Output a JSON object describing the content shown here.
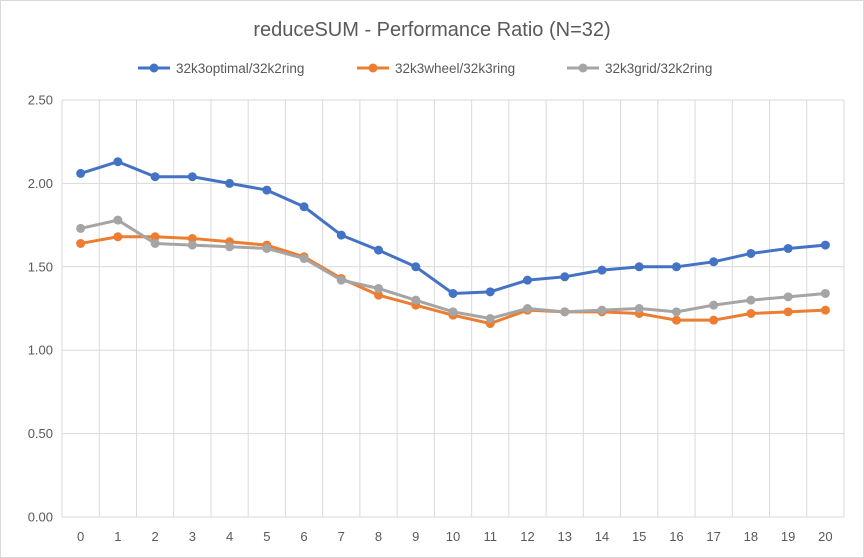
{
  "chart_data": {
    "type": "line",
    "title": "reduceSUM - Performance Ratio (N=32)",
    "xlabel": "",
    "ylabel": "",
    "x": [
      0,
      1,
      2,
      3,
      4,
      5,
      6,
      7,
      8,
      9,
      10,
      11,
      12,
      13,
      14,
      15,
      16,
      17,
      18,
      19,
      20
    ],
    "x_tick_labels": [
      "0",
      "1",
      "2",
      "3",
      "4",
      "5",
      "6",
      "7",
      "8",
      "9",
      "10",
      "11",
      "12",
      "13",
      "14",
      "15",
      "16",
      "17",
      "18",
      "19",
      "20"
    ],
    "ylim": [
      0,
      2.5
    ],
    "y_ticks": [
      0,
      0.5,
      1.0,
      1.5,
      2.0,
      2.5
    ],
    "y_tick_labels": [
      "0.00",
      "0.50",
      "1.00",
      "1.50",
      "2.00",
      "2.50"
    ],
    "grid": "vertical and horizontal",
    "legend_position": "top",
    "series": [
      {
        "name": "32k3optimal/32k2ring",
        "color": "#4472C4",
        "values": [
          2.06,
          2.13,
          2.04,
          2.04,
          2.0,
          1.96,
          1.86,
          1.69,
          1.6,
          1.5,
          1.34,
          1.35,
          1.42,
          1.44,
          1.48,
          1.5,
          1.5,
          1.53,
          1.58,
          1.61,
          1.63
        ]
      },
      {
        "name": "32k3wheel/32k3ring",
        "color": "#ED7D31",
        "values": [
          1.64,
          1.68,
          1.68,
          1.67,
          1.65,
          1.63,
          1.56,
          1.43,
          1.33,
          1.27,
          1.21,
          1.16,
          1.24,
          1.23,
          1.23,
          1.22,
          1.18,
          1.18,
          1.22,
          1.23,
          1.24
        ]
      },
      {
        "name": "32k3grid/32k2ring",
        "color": "#A5A5A5",
        "values": [
          1.73,
          1.78,
          1.64,
          1.63,
          1.62,
          1.61,
          1.55,
          1.42,
          1.37,
          1.3,
          1.23,
          1.19,
          1.25,
          1.23,
          1.24,
          1.25,
          1.23,
          1.27,
          1.3,
          1.32,
          1.34
        ]
      }
    ]
  }
}
